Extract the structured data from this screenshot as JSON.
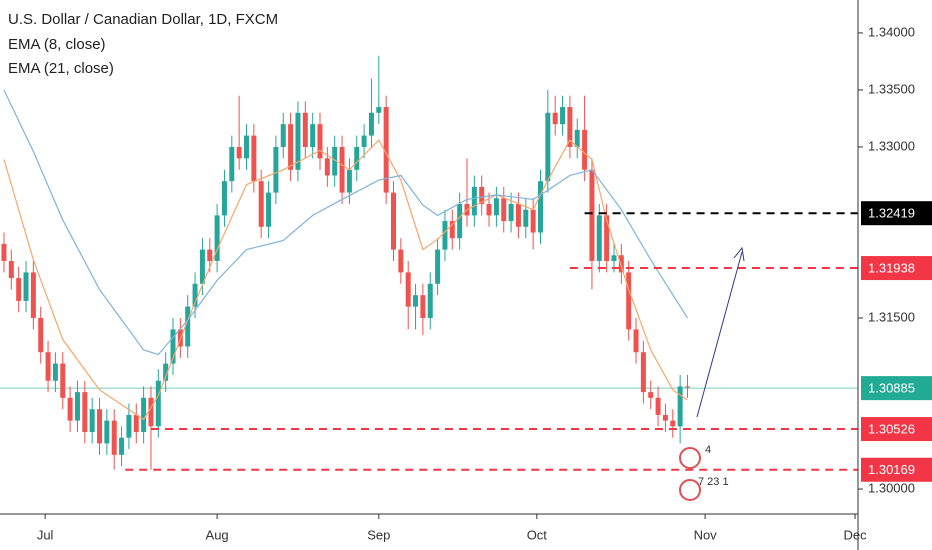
{
  "chart_data": {
    "type": "candlestick",
    "title": "U.S. Dollar / Canadian Dollar, 1D, FXCM",
    "up_color": "#26a69a",
    "down_color": "#ef5350",
    "candles": {
      "open": [
        1.3215,
        1.32,
        1.3185,
        1.3165,
        1.319,
        1.315,
        1.312,
        1.3095,
        1.311,
        1.308,
        1.306,
        1.3085,
        1.305,
        1.307,
        1.304,
        1.306,
        1.303,
        1.3045,
        1.3065,
        1.305,
        1.308,
        1.3055,
        1.3095,
        1.311,
        1.314,
        1.3125,
        1.316,
        1.318,
        1.321,
        1.32,
        1.324,
        1.327,
        1.33,
        1.329,
        1.331,
        1.327,
        1.323,
        1.326,
        1.33,
        1.332,
        1.328,
        1.333,
        1.33,
        1.332,
        1.329,
        1.3275,
        1.33,
        1.326,
        1.328,
        1.33,
        1.331,
        1.333,
        1.3335,
        1.326,
        1.321,
        1.319,
        1.316,
        1.317,
        1.315,
        1.318,
        1.321,
        1.3235,
        1.322,
        1.325,
        1.324,
        1.3265,
        1.325,
        1.324,
        1.3255,
        1.3235,
        1.325,
        1.323,
        1.3245,
        1.3225,
        1.327,
        1.333,
        1.332,
        1.3335,
        1.33,
        1.3315,
        1.328,
        1.32,
        1.324,
        1.32,
        1.3205,
        1.319,
        1.314,
        1.312,
        1.3085,
        1.308,
        1.3065,
        1.306,
        1.3055,
        1.309
      ],
      "high": [
        1.3225,
        1.321,
        1.3195,
        1.32,
        1.32,
        1.316,
        1.313,
        1.312,
        1.312,
        1.309,
        1.3095,
        1.3095,
        1.308,
        1.308,
        1.307,
        1.307,
        1.3055,
        1.3075,
        1.3075,
        1.309,
        1.309,
        1.3105,
        1.312,
        1.315,
        1.315,
        1.317,
        1.319,
        1.322,
        1.322,
        1.325,
        1.328,
        1.331,
        1.3345,
        1.332,
        1.332,
        1.328,
        1.327,
        1.331,
        1.333,
        1.333,
        1.334,
        1.334,
        1.333,
        1.333,
        1.33,
        1.331,
        1.331,
        1.329,
        1.331,
        1.332,
        1.336,
        1.338,
        1.3345,
        1.327,
        1.322,
        1.32,
        1.318,
        1.318,
        1.319,
        1.322,
        1.3245,
        1.3245,
        1.326,
        1.329,
        1.3275,
        1.3275,
        1.326,
        1.3265,
        1.3265,
        1.326,
        1.326,
        1.3255,
        1.3255,
        1.328,
        1.335,
        1.3345,
        1.3345,
        1.3345,
        1.3325,
        1.3345,
        1.329,
        1.325,
        1.325,
        1.3215,
        1.3215,
        1.32,
        1.315,
        1.313,
        1.3095,
        1.309,
        1.3075,
        1.307,
        1.31,
        1.31
      ],
      "low": [
        1.319,
        1.3175,
        1.3155,
        1.3155,
        1.314,
        1.311,
        1.3085,
        1.3085,
        1.307,
        1.305,
        1.305,
        1.304,
        1.304,
        1.303,
        1.303,
        1.3017,
        1.302,
        1.3035,
        1.304,
        1.304,
        1.3017,
        1.3045,
        1.3085,
        1.31,
        1.3115,
        1.3115,
        1.315,
        1.317,
        1.319,
        1.319,
        1.323,
        1.326,
        1.328,
        1.328,
        1.326,
        1.322,
        1.322,
        1.325,
        1.329,
        1.327,
        1.327,
        1.329,
        1.329,
        1.328,
        1.3265,
        1.3265,
        1.325,
        1.325,
        1.327,
        1.329,
        1.33,
        1.332,
        1.325,
        1.32,
        1.318,
        1.314,
        1.314,
        1.3135,
        1.314,
        1.317,
        1.32,
        1.321,
        1.321,
        1.323,
        1.323,
        1.324,
        1.323,
        1.323,
        1.3225,
        1.3225,
        1.322,
        1.322,
        1.321,
        1.3215,
        1.326,
        1.331,
        1.331,
        1.329,
        1.329,
        1.327,
        1.3175,
        1.319,
        1.319,
        1.319,
        1.318,
        1.313,
        1.311,
        1.3075,
        1.307,
        1.3055,
        1.305,
        1.3045,
        1.304,
        1.308
      ],
      "close": [
        1.32,
        1.3185,
        1.3165,
        1.319,
        1.315,
        1.312,
        1.3095,
        1.311,
        1.308,
        1.306,
        1.3085,
        1.305,
        1.307,
        1.304,
        1.306,
        1.303,
        1.3045,
        1.3065,
        1.305,
        1.308,
        1.3055,
        1.3095,
        1.311,
        1.314,
        1.3125,
        1.316,
        1.318,
        1.321,
        1.32,
        1.324,
        1.327,
        1.33,
        1.329,
        1.331,
        1.327,
        1.323,
        1.326,
        1.33,
        1.332,
        1.328,
        1.333,
        1.33,
        1.332,
        1.329,
        1.3275,
        1.33,
        1.326,
        1.328,
        1.33,
        1.331,
        1.333,
        1.3335,
        1.326,
        1.321,
        1.319,
        1.316,
        1.317,
        1.315,
        1.318,
        1.321,
        1.3235,
        1.322,
        1.325,
        1.324,
        1.3265,
        1.325,
        1.324,
        1.3255,
        1.3235,
        1.325,
        1.323,
        1.3245,
        1.3225,
        1.327,
        1.333,
        1.332,
        1.3335,
        1.33,
        1.3315,
        1.328,
        1.32,
        1.324,
        1.32,
        1.3205,
        1.319,
        1.314,
        1.312,
        1.3085,
        1.308,
        1.3065,
        1.306,
        1.3055,
        1.309,
        1.3089
      ]
    },
    "series": [
      {
        "name": "EMA (8, close)",
        "color": "#f7a66b",
        "x": [
          0,
          4,
          8,
          13,
          19,
          21,
          25,
          29,
          33,
          38,
          43,
          47,
          51,
          54,
          57,
          59,
          63,
          67,
          72,
          74,
          77,
          80,
          82,
          85,
          88,
          91,
          93
        ],
        "values": [
          1.3289,
          1.3201,
          1.3131,
          1.3087,
          1.3061,
          1.3082,
          1.3148,
          1.321,
          1.3267,
          1.328,
          1.3297,
          1.328,
          1.3306,
          1.3271,
          1.321,
          1.3219,
          1.3245,
          1.3258,
          1.3245,
          1.3271,
          1.3306,
          1.3289,
          1.3236,
          1.3175,
          1.3122,
          1.3087,
          1.3078
        ]
      },
      {
        "name": "EMA (21, close)",
        "color": "#7fb3dc",
        "x": [
          0,
          4,
          8,
          13,
          19,
          21,
          25,
          29,
          33,
          38,
          42,
          46,
          51,
          54,
          57,
          59,
          63,
          67,
          72,
          74,
          77,
          80,
          84,
          88,
          93
        ],
        "values": [
          1.335,
          1.3296,
          1.3236,
          1.3175,
          1.3122,
          1.3118,
          1.3148,
          1.3183,
          1.321,
          1.3218,
          1.324,
          1.3254,
          1.3271,
          1.3275,
          1.3249,
          1.324,
          1.3254,
          1.3258,
          1.3254,
          1.3262,
          1.3275,
          1.328,
          1.3245,
          1.3201,
          1.315
        ]
      }
    ],
    "levels": [
      {
        "value": 1.32419,
        "color": "#000000",
        "x_start": 79
      },
      {
        "value": 1.31938,
        "color": "#f23645",
        "x_start": 77
      },
      {
        "value": 1.30526,
        "color": "#f23645",
        "x_start": 20
      },
      {
        "value": 1.30169,
        "color": "#f23645",
        "x_start": 16.5
      }
    ],
    "last_price": 1.30885,
    "last_price_color": "#22ab94",
    "event_labels": [
      "4",
      "7 23 1"
    ],
    "xlim": [
      -0.54,
      116.2
    ],
    "xticks": [
      {
        "value": 5.6,
        "label": "Jul"
      },
      {
        "value": 29,
        "label": "Aug"
      },
      {
        "value": 51,
        "label": "Sep"
      },
      {
        "value": 72.5,
        "label": "Oct"
      },
      {
        "value": 95.4,
        "label": "Nov"
      },
      {
        "value": 115.8,
        "label": "Dec"
      }
    ],
    "ylim": [
      1.29781,
      1.34289
    ],
    "yticks": [
      {
        "value": 1.34,
        "label": "1.34000"
      },
      {
        "value": 1.335,
        "label": "1.33500"
      },
      {
        "value": 1.33,
        "label": "1.33000"
      },
      {
        "value": 1.315,
        "label": "1.31500"
      },
      {
        "value": 1.3,
        "label": "1.30000"
      }
    ]
  }
}
